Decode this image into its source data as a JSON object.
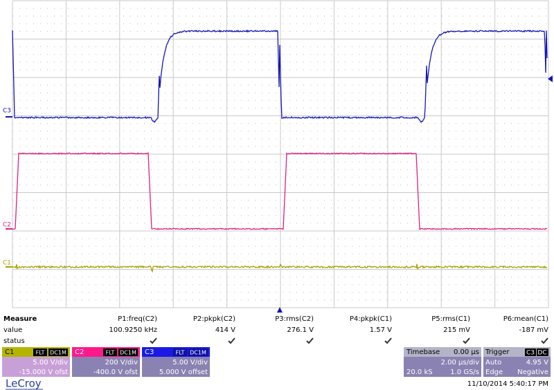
{
  "channel_markers": [
    "C3",
    "C2",
    "C1"
  ],
  "measure": {
    "title": "Measure",
    "row_labels": [
      "value",
      "status"
    ],
    "columns": [
      {
        "name": "P1:freq(C2)",
        "value": "100.9250 kHz"
      },
      {
        "name": "P2:pkpk(C2)",
        "value": "414 V"
      },
      {
        "name": "P3:rms(C2)",
        "value": "276.1 V"
      },
      {
        "name": "P4:pkpk(C1)",
        "value": "1.57 V"
      },
      {
        "name": "P5:rms(C1)",
        "value": "215 mV"
      },
      {
        "name": "P6:mean(C1)",
        "value": "-187 mV"
      }
    ]
  },
  "channels": [
    {
      "name": "C1",
      "tags": [
        "FLT",
        "DC1M"
      ],
      "scale": "5.00 V/div",
      "offset": "-15.000 V ofst"
    },
    {
      "name": "C2",
      "tags": [
        "FLT",
        "DC1M"
      ],
      "scale": "200 V/div",
      "offset": "-400.0 V ofst"
    },
    {
      "name": "C3",
      "tags": [
        "FLT",
        "DC1M"
      ],
      "scale": "5.00 V/div",
      "offset": "5.000 V offset"
    }
  ],
  "timebase": {
    "title": "Timebase",
    "delay": "0.00 µs",
    "scale": "2.00 µs/div",
    "samples": "20.0 kS",
    "rate": "1.0 GS/s"
  },
  "trigger": {
    "title": "Trigger",
    "source": "C3",
    "coupling": "DC",
    "mode": "Auto",
    "level": "4.95 V",
    "type": "Edge",
    "slope": "Negative"
  },
  "brand": "LeCroy",
  "timestamp": "11/10/2014 5:40:17 PM"
}
